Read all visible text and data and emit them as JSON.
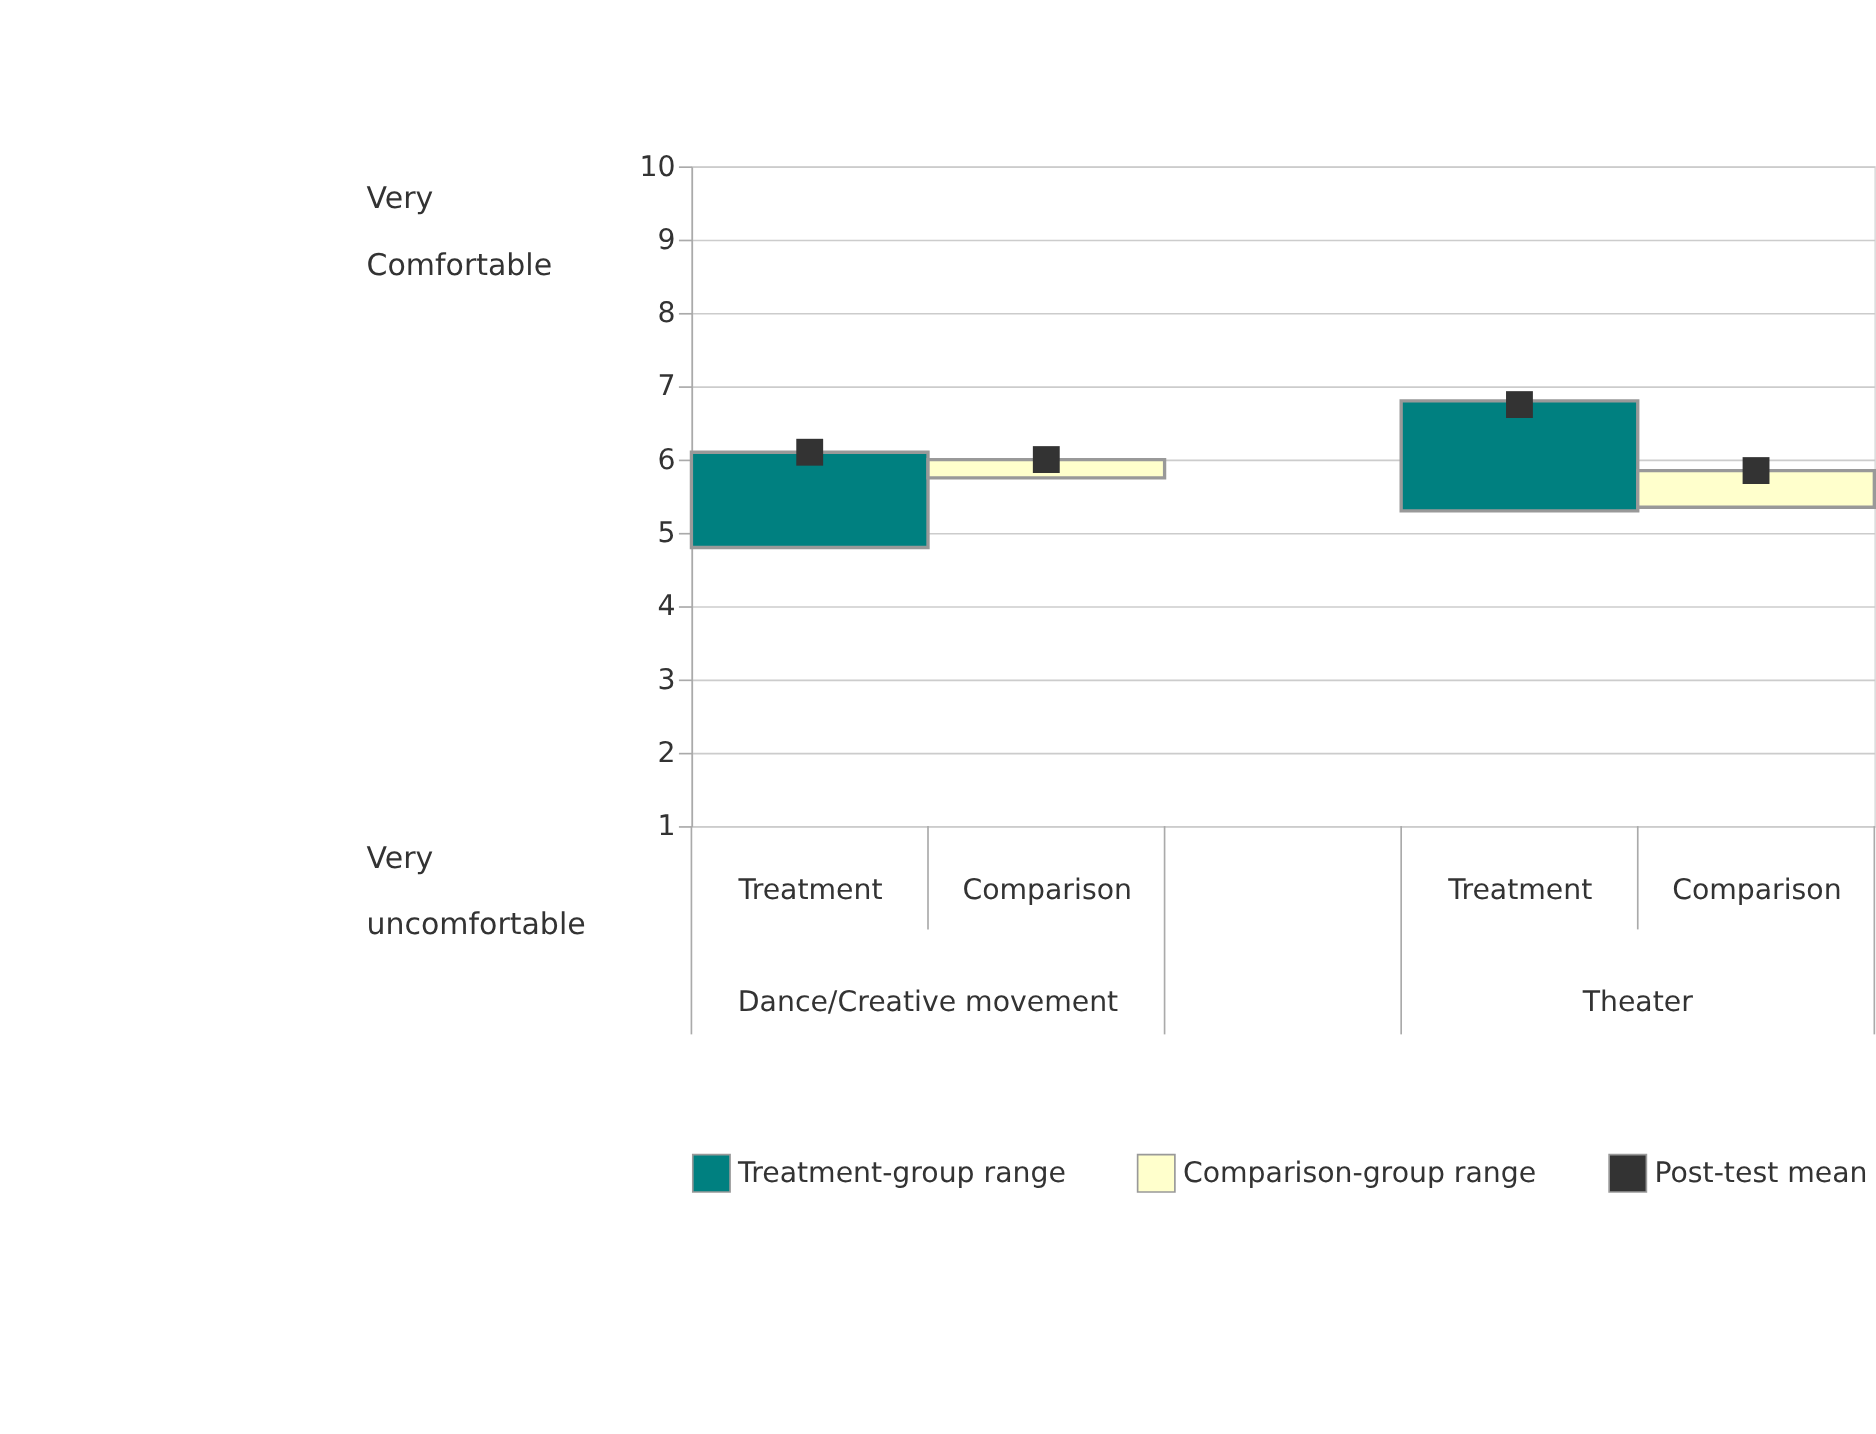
{
  "chart_data": {
    "type": "bar",
    "categories": [
      "Treatment",
      "Comparison",
      null,
      "Treatment",
      "Comparison"
    ],
    "series": [
      {
        "name": "Treatment-group range",
        "color": "#008080",
        "base": [
          4.8,
          null,
          null,
          5.3,
          null
        ],
        "values": [
          1.3,
          null,
          null,
          1.5,
          null
        ]
      },
      {
        "name": "Comparison-group range",
        "color": "#ffffcc",
        "base": [
          null,
          5.75,
          null,
          null,
          5.35
        ],
        "values": [
          null,
          0.25,
          null,
          null,
          0.5
        ]
      },
      {
        "name": "Post-test mean",
        "type": "scatter",
        "color": "#333333",
        "marker": "square",
        "values": [
          6.1,
          6.0,
          null,
          6.75,
          5.85
        ]
      }
    ],
    "ylim": [
      1,
      10
    ],
    "yticks": [
      1,
      2,
      3,
      4,
      5,
      6,
      7,
      8,
      9,
      10
    ],
    "grid": "y",
    "legend": "bottom",
    "annotations": [
      "Very Comfortable",
      "Very uncomfortable",
      "Dance/Creative movement",
      "Theater"
    ]
  }
}
